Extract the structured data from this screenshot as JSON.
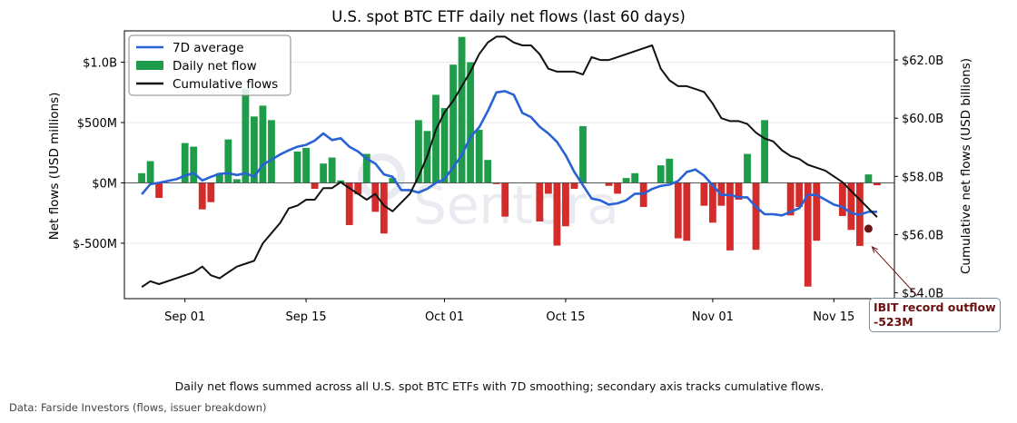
{
  "chart_data": {
    "type": "bar",
    "title": "U.S. spot BTC ETF daily net flows (last 60 days)",
    "ylabel": "Net flows (USD millions)",
    "y2label": "Cumulative net flows (USD billions)",
    "ylim": [
      -960,
      1260
    ],
    "y2lim": [
      53.8,
      63.0
    ],
    "yticks": [
      {
        "value": 1000,
        "label": "$1.0B"
      },
      {
        "value": 500,
        "label": "$500M"
      },
      {
        "value": 0,
        "label": "$0M"
      },
      {
        "value": -500,
        "label": "$-500M"
      }
    ],
    "y2ticks": [
      {
        "value": 62,
        "label": "$62.0B"
      },
      {
        "value": 60,
        "label": "$60.0B"
      },
      {
        "value": 58,
        "label": "$58.0B"
      },
      {
        "value": 56,
        "label": "$56.0B"
      },
      {
        "value": 54,
        "label": "$54.0B"
      }
    ],
    "xticks": [
      {
        "day": 5,
        "label": "Sep 01"
      },
      {
        "day": 19,
        "label": "Sep 15"
      },
      {
        "day": 35,
        "label": "Oct 01"
      },
      {
        "day": 49,
        "label": "Oct 15"
      },
      {
        "day": 66,
        "label": "Nov 01"
      },
      {
        "day": 80,
        "label": "Nov 15"
      }
    ],
    "x_domain": [
      -2,
      87
    ],
    "days": [
      0,
      1,
      2,
      5,
      6,
      7,
      8,
      9,
      10,
      11,
      12,
      13,
      14,
      15,
      18,
      19,
      20,
      21,
      22,
      23,
      24,
      25,
      26,
      27,
      28,
      29,
      32,
      33,
      34,
      35,
      36,
      37,
      38,
      39,
      40,
      41,
      42,
      46,
      47,
      48,
      49,
      50,
      51,
      54,
      55,
      56,
      57,
      58,
      60,
      61,
      62,
      63,
      65,
      66,
      67,
      68,
      69,
      70,
      71,
      72,
      75,
      76,
      77,
      78,
      81,
      82,
      83,
      84,
      85
    ],
    "values": [
      80,
      180,
      -125,
      330,
      300,
      -220,
      -160,
      80,
      360,
      30,
      780,
      550,
      640,
      520,
      260,
      290,
      -50,
      160,
      210,
      20,
      -350,
      -95,
      240,
      -240,
      -420,
      40,
      520,
      430,
      730,
      620,
      980,
      1210,
      1000,
      440,
      190,
      -10,
      -280,
      -320,
      -90,
      -520,
      -360,
      -50,
      470,
      -25,
      -90,
      40,
      80,
      -200,
      145,
      200,
      -460,
      -480,
      -190,
      -330,
      -190,
      -560,
      -140,
      240,
      -555,
      520,
      -270,
      -200,
      -860,
      -480,
      -275,
      -390,
      -523,
      70,
      -20
    ],
    "series": [
      {
        "name": "7D average",
        "color": "#2962d4",
        "x": [
          0,
          1,
          2,
          4,
          5,
          6,
          7,
          8,
          9,
          10,
          11,
          12,
          13,
          14,
          16,
          17,
          18,
          19,
          20,
          21,
          22,
          23,
          24,
          25,
          26,
          27,
          28,
          29,
          30,
          31,
          32,
          33,
          34,
          35,
          36,
          37,
          38,
          39,
          40,
          41,
          42,
          43,
          44,
          45,
          46,
          47,
          48,
          49,
          50,
          51,
          52,
          53,
          54,
          55,
          56,
          57,
          58,
          59,
          60,
          61,
          62,
          63,
          64,
          65,
          66,
          67,
          68,
          69,
          70,
          71,
          72,
          73,
          74,
          75,
          76,
          77,
          78,
          79,
          80,
          81,
          82,
          83,
          84,
          85
        ],
        "y": [
          -95,
          -10,
          0,
          30,
          60,
          80,
          20,
          50,
          75,
          80,
          65,
          80,
          50,
          150,
          235,
          270,
          300,
          315,
          350,
          410,
          355,
          370,
          300,
          260,
          200,
          160,
          70,
          50,
          -60,
          -60,
          -80,
          -50,
          0,
          30,
          130,
          230,
          380,
          460,
          595,
          750,
          760,
          730,
          580,
          545,
          465,
          410,
          340,
          230,
          90,
          -20,
          -130,
          -145,
          -180,
          -170,
          -145,
          -90,
          -90,
          -50,
          -25,
          -15,
          15,
          90,
          110,
          60,
          -20,
          -100,
          -100,
          -120,
          -120,
          -200,
          -260,
          -260,
          -270,
          -240,
          -210,
          -100,
          -100,
          -140,
          -180,
          -200,
          -250,
          -265,
          -240,
          -240
        ]
      },
      {
        "name": "Cumulative flows",
        "color": "#111111",
        "axis": "y2",
        "x": [
          0,
          1,
          2,
          4,
          5,
          6,
          7,
          8,
          9,
          10,
          11,
          12,
          13,
          14,
          16,
          17,
          18,
          19,
          20,
          21,
          22,
          23,
          24,
          25,
          26,
          27,
          28,
          29,
          30,
          31,
          32,
          33,
          34,
          35,
          36,
          37,
          38,
          39,
          40,
          41,
          42,
          43,
          44,
          45,
          46,
          47,
          48,
          49,
          50,
          51,
          52,
          53,
          54,
          55,
          56,
          57,
          58,
          59,
          60,
          61,
          62,
          63,
          64,
          65,
          66,
          67,
          68,
          69,
          70,
          71,
          72,
          73,
          74,
          75,
          76,
          77,
          78,
          79,
          80,
          81,
          82,
          83,
          84,
          85
        ],
        "y": [
          54.2,
          54.4,
          54.3,
          54.5,
          54.6,
          54.7,
          54.9,
          54.6,
          54.5,
          54.7,
          54.9,
          55.0,
          55.1,
          55.7,
          56.4,
          56.9,
          57.0,
          57.2,
          57.2,
          57.6,
          57.6,
          57.8,
          57.6,
          57.4,
          57.2,
          57.4,
          57.0,
          56.8,
          57.1,
          57.4,
          58.0,
          58.7,
          59.6,
          60.2,
          60.6,
          61.1,
          61.6,
          62.2,
          62.6,
          62.8,
          62.8,
          62.6,
          62.5,
          62.5,
          62.2,
          61.7,
          61.6,
          61.6,
          61.6,
          61.5,
          62.1,
          62.0,
          62.0,
          62.1,
          62.2,
          62.3,
          62.4,
          62.5,
          61.7,
          61.3,
          61.1,
          61.1,
          61.0,
          60.9,
          60.5,
          60.0,
          59.9,
          59.9,
          59.8,
          59.5,
          59.3,
          59.2,
          58.9,
          58.7,
          58.6,
          58.4,
          58.3,
          58.2,
          58.0,
          57.8,
          57.5,
          57.2,
          56.9,
          56.6
        ]
      }
    ],
    "legend": {
      "position": "top-left",
      "entries": [
        {
          "label": "7D average",
          "color": "#2962d4",
          "kind": "line"
        },
        {
          "label": "Daily net flow",
          "color": "#1e9c4a",
          "kind": "patch"
        },
        {
          "label": "Cumulative flows",
          "color": "#111111",
          "kind": "line"
        }
      ]
    },
    "annotation": {
      "line1": "IBIT record outflow",
      "line2": "-523M",
      "day": 84,
      "value": -380
    },
    "positive_color": "#1e9c4a",
    "negative_color": "#d42b2b",
    "grid": true
  },
  "caption": "Daily net flows summed across all U.S. spot BTC ETFs with 7D smoothing; secondary axis tracks cumulative flows.",
  "source": "Data: Farside Investors (flows, issuer breakdown)",
  "watermark": "Sentora"
}
